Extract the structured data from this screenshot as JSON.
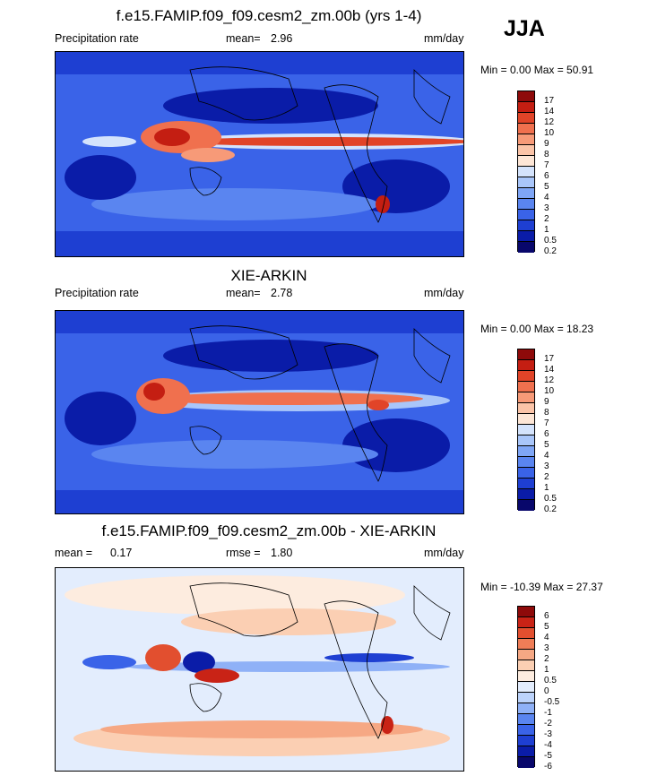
{
  "season": "JJA",
  "colors": {
    "prec": [
      "#08076b",
      "#0a1ca8",
      "#1e3fd2",
      "#3a63e8",
      "#5a85f0",
      "#7fa6f6",
      "#a9c6fa",
      "#d4e3fc",
      "#fde6d6",
      "#fbc4a8",
      "#f79a78",
      "#f0704e",
      "#e14428",
      "#c41e12",
      "#8e0a0a"
    ],
    "diff": [
      "#08076b",
      "#0a1ca8",
      "#1e3fd2",
      "#3a63e8",
      "#5a85f0",
      "#8fb1f7",
      "#bcd3fb",
      "#e3edfd",
      "#fdecdf",
      "#fbcfb3",
      "#f6a884",
      "#ef7d57",
      "#e24f2f",
      "#c92316",
      "#8e0a0a"
    ]
  },
  "panels": [
    {
      "id": "model",
      "title": "f.e15.FAMIP.f09_f09.cesm2_zm.00b (yrs 1-4)",
      "left_label": "Precipitation rate",
      "mean_label": "mean=",
      "mean_value": "2.96",
      "units": "mm/day",
      "minmax": "Min =   0.00 Max =  50.91",
      "ticks": [
        "17",
        "14",
        "12",
        "10",
        "9",
        "8",
        "7",
        "6",
        "5",
        "4",
        "3",
        "2",
        "1",
        "0.5",
        "0.2"
      ]
    },
    {
      "id": "obs",
      "title": "XIE-ARKIN",
      "left_label": "Precipitation rate",
      "mean_label": "mean=",
      "mean_value": "2.78",
      "units": "mm/day",
      "minmax": "Min =   0.00 Max =  18.23",
      "ticks": [
        "17",
        "14",
        "12",
        "10",
        "9",
        "8",
        "7",
        "6",
        "5",
        "4",
        "3",
        "2",
        "1",
        "0.5",
        "0.2"
      ]
    },
    {
      "id": "diff",
      "title": "f.e15.FAMIP.f09_f09.cesm2_zm.00b - XIE-ARKIN",
      "left_label": "mean =",
      "left_value": "0.17",
      "rmse_label": "rmse =",
      "rmse_value": "1.80",
      "units": "mm/day",
      "minmax": "Min = -10.39 Max =  27.37",
      "ticks": [
        "6",
        "5",
        "4",
        "3",
        "2",
        "1",
        "0.5",
        "0",
        "-0.5",
        "-1",
        "-2",
        "-3",
        "-4",
        "-5",
        "-6"
      ]
    }
  ]
}
